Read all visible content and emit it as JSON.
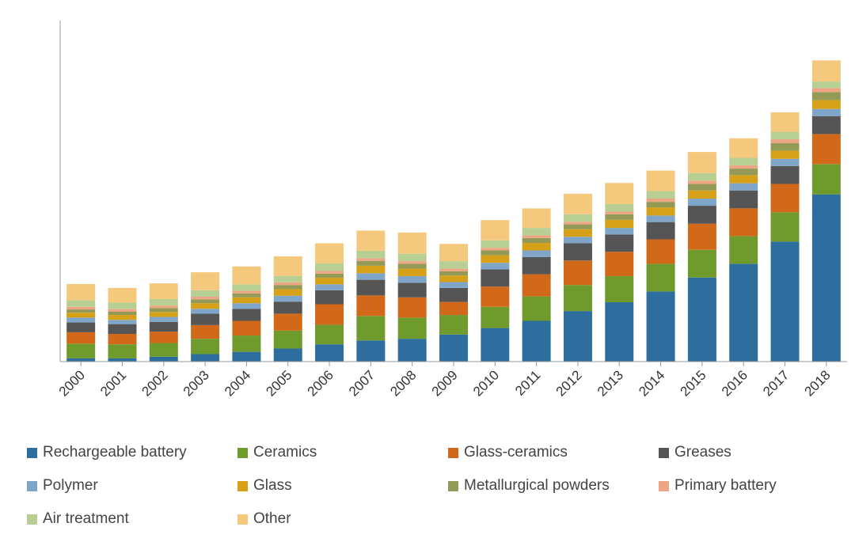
{
  "chart_data": {
    "type": "bar",
    "stacked": true,
    "title": "",
    "xlabel": "",
    "ylabel": "",
    "ylim": [
      0,
      100
    ],
    "y_axis_ticks_visible": false,
    "grid": false,
    "legend_position": "bottom",
    "categories": [
      "2000",
      "2001",
      "2002",
      "2003",
      "2004",
      "2005",
      "2006",
      "2007",
      "2008",
      "2009",
      "2010",
      "2011",
      "2012",
      "2013",
      "2014",
      "2015",
      "2016",
      "2017",
      "2018"
    ],
    "series": [
      {
        "name": "Rechargeable battery",
        "color": "#2e6e9e",
        "values": [
          1.0,
          1.0,
          1.5,
          2.3,
          3.0,
          4.0,
          5.3,
          6.5,
          7.0,
          8.3,
          10.3,
          12.5,
          15.5,
          18.2,
          21.5,
          25.8,
          30.0,
          36.8,
          51.3
        ]
      },
      {
        "name": "Ceramics",
        "color": "#6f9a2c",
        "values": [
          4.5,
          4.3,
          4.2,
          4.7,
          5.0,
          5.5,
          6.0,
          7.5,
          6.5,
          6.0,
          6.5,
          7.5,
          8.0,
          8.0,
          8.5,
          8.5,
          8.5,
          9.0,
          9.3
        ]
      },
      {
        "name": "Glass-ceramics",
        "color": "#d2691a",
        "values": [
          3.5,
          3.2,
          3.5,
          4.2,
          4.5,
          5.2,
          6.3,
          6.3,
          6.2,
          4.0,
          6.2,
          6.8,
          7.5,
          7.5,
          7.5,
          8.0,
          8.5,
          8.7,
          9.2
        ]
      },
      {
        "name": "Greases",
        "color": "#555555",
        "values": [
          3.0,
          3.0,
          3.0,
          3.5,
          3.7,
          3.7,
          4.3,
          4.8,
          4.5,
          4.3,
          5.3,
          5.3,
          5.3,
          5.3,
          5.3,
          5.5,
          5.5,
          5.5,
          5.5
        ]
      },
      {
        "name": "Polymer",
        "color": "#7fa6c8",
        "values": [
          1.5,
          1.3,
          1.5,
          1.5,
          1.7,
          1.8,
          1.8,
          2.0,
          2.0,
          1.8,
          2.0,
          2.0,
          2.0,
          2.0,
          2.0,
          2.2,
          2.2,
          2.2,
          2.2
        ]
      },
      {
        "name": "Glass",
        "color": "#d6a018",
        "values": [
          1.5,
          1.5,
          1.5,
          1.7,
          1.8,
          2.0,
          2.0,
          2.3,
          2.3,
          2.0,
          2.3,
          2.3,
          2.3,
          2.5,
          2.5,
          2.5,
          2.5,
          2.5,
          2.7
        ]
      },
      {
        "name": "Metallurgical powders",
        "color": "#939a56",
        "values": [
          1.0,
          1.0,
          1.2,
          1.2,
          1.2,
          1.3,
          1.3,
          1.5,
          1.5,
          1.3,
          1.5,
          1.5,
          1.5,
          1.7,
          1.7,
          2.0,
          2.0,
          2.3,
          2.5
        ]
      },
      {
        "name": "Primary battery",
        "color": "#eea583",
        "values": [
          0.8,
          0.8,
          0.8,
          0.8,
          0.8,
          0.8,
          0.8,
          0.8,
          0.8,
          0.8,
          0.8,
          0.8,
          0.8,
          0.8,
          1.0,
          1.0,
          1.0,
          1.2,
          1.2
        ]
      },
      {
        "name": "Air treatment",
        "color": "#b8cf94",
        "values": [
          2.0,
          2.0,
          2.0,
          2.0,
          2.0,
          2.0,
          2.3,
          2.3,
          2.3,
          2.3,
          2.3,
          2.3,
          2.3,
          2.3,
          2.3,
          2.3,
          2.3,
          2.3,
          2.0
        ]
      },
      {
        "name": "Other",
        "color": "#f5c97d",
        "values": [
          5.0,
          4.5,
          4.8,
          5.5,
          5.5,
          6.0,
          6.2,
          6.2,
          6.5,
          5.3,
          6.2,
          6.0,
          6.3,
          6.5,
          6.3,
          6.5,
          6.0,
          6.0,
          6.5
        ]
      }
    ]
  }
}
